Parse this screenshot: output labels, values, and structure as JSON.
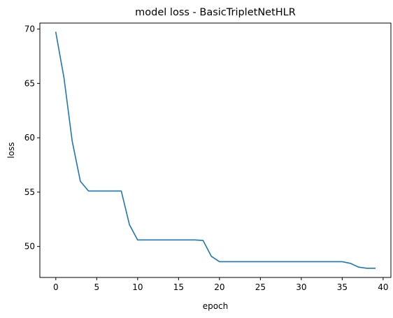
{
  "chart_data": {
    "type": "line",
    "title": "model loss - BasicTripletNetHLR",
    "xlabel": "epoch",
    "ylabel": "loss",
    "xlim": [
      -1.95,
      40.95
    ],
    "ylim": [
      47.15,
      70.55
    ],
    "xticks": [
      0,
      5,
      10,
      15,
      20,
      25,
      30,
      35,
      40
    ],
    "yticks": [
      50,
      55,
      60,
      65,
      70
    ],
    "grid": false,
    "legend": "none",
    "series": [
      {
        "color": "#1f77b4",
        "x": [
          0,
          1,
          2,
          3,
          4,
          5,
          6,
          7,
          8,
          9,
          10,
          11,
          12,
          13,
          14,
          15,
          16,
          17,
          18,
          19,
          20,
          21,
          22,
          23,
          24,
          25,
          26,
          27,
          28,
          29,
          30,
          31,
          32,
          33,
          34,
          35,
          36,
          37,
          38,
          39
        ],
        "y": [
          69.7,
          65.5,
          59.7,
          56.0,
          55.1,
          55.1,
          55.1,
          55.1,
          55.1,
          52.0,
          50.6,
          50.6,
          50.6,
          50.6,
          50.6,
          50.6,
          50.6,
          50.6,
          50.55,
          49.1,
          48.6,
          48.6,
          48.6,
          48.6,
          48.6,
          48.6,
          48.6,
          48.6,
          48.6,
          48.6,
          48.6,
          48.6,
          48.6,
          48.6,
          48.6,
          48.6,
          48.45,
          48.1,
          48.0,
          48.0
        ]
      }
    ]
  }
}
